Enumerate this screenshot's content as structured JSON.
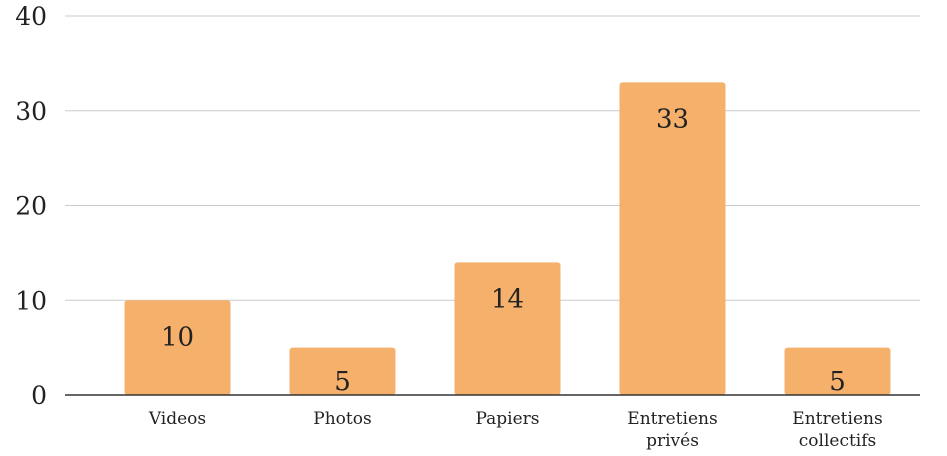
{
  "chart_data": {
    "type": "bar",
    "categories": [
      "Videos",
      "Photos",
      "Papiers",
      "Entretiens privés",
      "Entretiens collectifs"
    ],
    "category_lines": [
      [
        "Videos"
      ],
      [
        "Photos"
      ],
      [
        "Papiers"
      ],
      [
        "Entretiens",
        "privés"
      ],
      [
        "Entretiens",
        "collectifs"
      ]
    ],
    "values": [
      10,
      5,
      14,
      33,
      5
    ],
    "data_labels": [
      "10",
      "5",
      "14",
      "33",
      "5"
    ],
    "y_ticks": [
      0,
      10,
      20,
      30,
      40
    ],
    "y_tick_labels": [
      "0",
      "10",
      "20",
      "30",
      "40"
    ],
    "ylim": [
      0,
      40
    ],
    "grid": true,
    "legend": "none",
    "bar_color": "#f5b06b",
    "title": "",
    "xlabel": "",
    "ylabel": ""
  }
}
